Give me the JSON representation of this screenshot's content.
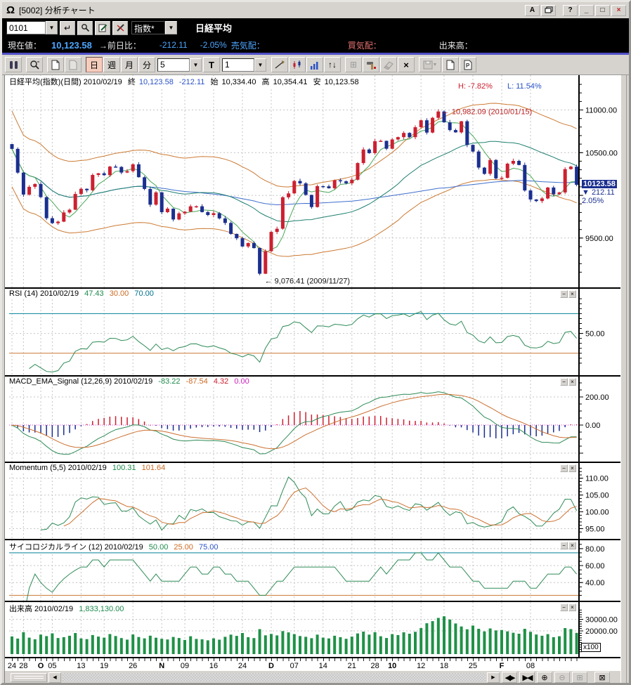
{
  "window": {
    "title": "[5002] 分析チャート",
    "logo": "Ω",
    "buttons": {
      "a": "A",
      "help": "?",
      "min": "_",
      "max": "□",
      "close": "×"
    }
  },
  "quote_bar": {
    "code": "0101",
    "index_type": "指数*",
    "instrument": "日経平均"
  },
  "status_bar": {
    "current_label": "現在値：",
    "current": "10,123.58",
    "prev_label": "→前日比：",
    "change": "-212.11",
    "change_pct": "-2.05%",
    "ask_label": "売気配：",
    "bid_label": "買気配：",
    "volume_label": "出来高："
  },
  "toolbar": {
    "day": "日",
    "week": "週",
    "month": "月",
    "minute": "分",
    "period": "5",
    "t": "T",
    "interval": "1",
    "updown": "↑↓",
    "grid": "⊞",
    "delete": "×"
  },
  "glyphs": {
    "dropdown": "▼",
    "enter": "↵",
    "left": "◀",
    "right": "▶",
    "expand": "◀▶",
    "shrink": "▶◀",
    "zoomin": "⊕",
    "zoomout": "⊖",
    "gridbox": "⊞",
    "boxclose": "⊠",
    "minimize": "−",
    "close": "×"
  },
  "panels": {
    "main": {
      "header_name": "日経平均(指数)(日間) 2010/02/19",
      "close_label": "終",
      "close": "10,123.58",
      "change": "-212.11",
      "open_label": "始",
      "open": "10,334.40",
      "high_label": "高",
      "high": "10,354.41",
      "low_label": "安",
      "low": "10,123.58",
      "h_label": "H: -7.82%",
      "l_label": "L: 11.54%",
      "anno_high": "← 10,982.09 (2010/01/15)",
      "anno_low": "← 9,076.41 (2009/11/27)",
      "price_chip": "10123.58",
      "diff_chip": "▼ 212.11",
      "pct_chip": "2.05%"
    },
    "rsi": {
      "title": "RSI (14) 2010/02/19",
      "v1": "47.43",
      "v2": "30.00",
      "v3": "70.00"
    },
    "macd": {
      "title": "MACD_EMA_Signal (12,26,9) 2010/02/19",
      "v1": "-83.22",
      "v2": "-87.54",
      "v3": "4.32",
      "v4": "0.00"
    },
    "momentum": {
      "title": "Momentum (5,5) 2010/02/19",
      "v1": "100.31",
      "v2": "101.64"
    },
    "psych": {
      "title": "サイコロジカルライン (12) 2010/02/19",
      "v1": "50.00",
      "v2": "25.00",
      "v3": "75.00"
    },
    "volume": {
      "title": "出来高 2010/02/19",
      "v1": "1,833,130.00",
      "multiplier": "x100"
    }
  },
  "chart_data": {
    "type": "candlestick-multi-panel",
    "title": "日経平均(指数)(日間)",
    "date": "2010/02/19",
    "closes": [
      10544,
      10266,
      10009,
      10100,
      10133,
      9979,
      9732,
      9674,
      9692,
      9800,
      9832,
      10016,
      10077,
      10060,
      10239,
      10258,
      10237,
      10337,
      10333,
      10267,
      10283,
      10363,
      10212,
      10075,
      9891,
      10035,
      9803,
      9844,
      9717,
      9789,
      9809,
      9871,
      9872,
      9804,
      9770,
      9791,
      9730,
      9677,
      9549,
      9498,
      9402,
      9442,
      9383,
      9082,
      9346,
      9572,
      9609,
      9978,
      10023,
      10168,
      10140,
      10005,
      9863,
      10108,
      10106,
      10083,
      10177,
      10164,
      10142,
      10183,
      10378,
      10537,
      10495,
      10634,
      10638,
      10546,
      10655,
      10682,
      10731,
      10682,
      10798,
      10879,
      10735,
      10908,
      10982,
      10855,
      10765,
      10738,
      10868,
      10591,
      10513,
      10325,
      10252,
      10414,
      10198,
      10205,
      10371,
      10404,
      10356,
      10057,
      9952,
      9933,
      9964,
      10092,
      10013,
      10034,
      10307,
      10336,
      10123.58
    ],
    "volumes": [
      15200,
      13400,
      18900,
      14200,
      12800,
      16800,
      15500,
      17900,
      13900,
      14600,
      15800,
      18200,
      13500,
      12900,
      16400,
      15100,
      14200,
      17300,
      15600,
      13800,
      12500,
      16900,
      14700,
      13600,
      15900,
      14100,
      13200,
      12600,
      14800,
      13900,
      12200,
      15400,
      13100,
      12700,
      11900,
      13600,
      12400,
      14900,
      16800,
      15700,
      18200,
      14600,
      13800,
      21500,
      16200,
      17400,
      16100,
      19800,
      18700,
      17200,
      15600,
      14900,
      13700,
      16800,
      14200,
      13500,
      15800,
      14600,
      13200,
      15100,
      17800,
      19400,
      16800,
      18900,
      15400,
      13900,
      17200,
      16400,
      18800,
      17600,
      19200,
      22400,
      26600,
      28400,
      31200,
      32600,
      29800,
      26400,
      23800,
      21400,
      24600,
      21800,
      19600,
      22100,
      20400,
      20800,
      19600,
      18400,
      17600,
      21800,
      19200,
      16900,
      15800,
      17200,
      14600,
      15400,
      22400,
      21600,
      18331
    ],
    "x_ticks": [
      {
        "t": "24",
        "i": 0
      },
      {
        "t": "28",
        "i": 2
      },
      {
        "t": "O",
        "i": 5,
        "b": 1
      },
      {
        "t": "05",
        "i": 7
      },
      {
        "t": "13",
        "i": 12
      },
      {
        "t": "19",
        "i": 16
      },
      {
        "t": "26",
        "i": 21
      },
      {
        "t": "N",
        "i": 26,
        "b": 1
      },
      {
        "t": "09",
        "i": 30
      },
      {
        "t": "16",
        "i": 35
      },
      {
        "t": "24",
        "i": 40
      },
      {
        "t": "D",
        "i": 45,
        "b": 1
      },
      {
        "t": "07",
        "i": 49
      },
      {
        "t": "14",
        "i": 54
      },
      {
        "t": "21",
        "i": 59
      },
      {
        "t": "28",
        "i": 63
      },
      {
        "t": "10",
        "i": 66,
        "b": 1
      },
      {
        "t": "12",
        "i": 71
      },
      {
        "t": "18",
        "i": 75
      },
      {
        "t": "25",
        "i": 80
      },
      {
        "t": "F",
        "i": 85,
        "b": 1
      },
      {
        "t": "08",
        "i": 90
      }
    ],
    "annotations": [
      {
        "price": 10982.09,
        "index": 74,
        "date": "2010/01/15"
      },
      {
        "price": 9076.41,
        "index": 43,
        "date": "2009/11/27"
      }
    ],
    "panel_scales": {
      "main": {
        "ylim": [
          8980,
          11350
        ],
        "yticks": [
          {
            "v": 11000,
            "t": "11000.00"
          },
          {
            "v": 10500,
            "t": "10500.00"
          },
          {
            "v": 10000,
            "t": ""
          },
          {
            "v": 9500,
            "t": "9500.00"
          }
        ]
      },
      "rsi": {
        "ylim": [
          15,
          88
        ],
        "yticks": [
          {
            "v": 50,
            "t": "50.00"
          }
        ],
        "level_hi": 70,
        "level_lo": 30
      },
      "macd": {
        "ylim": [
          -230,
          315
        ],
        "yticks": [
          {
            "v": 200,
            "t": "200.00"
          },
          {
            "v": 0,
            "t": "0.00"
          },
          {
            "v": -200,
            "t": ""
          }
        ]
      },
      "momentum": {
        "ylim": [
          93,
          113.5
        ],
        "yticks": [
          {
            "v": 110,
            "t": "110.00"
          },
          {
            "v": 105,
            "t": "105.00"
          },
          {
            "v": 100,
            "t": "100.00"
          },
          {
            "v": 95,
            "t": "95.00"
          }
        ]
      },
      "psych": {
        "ylim": [
          22,
          86.5
        ],
        "yticks": [
          {
            "v": 80,
            "t": "80.00"
          },
          {
            "v": 60,
            "t": "60.00"
          },
          {
            "v": 40,
            "t": "40.00"
          }
        ],
        "level_hi": 75,
        "level_lo": 25
      },
      "volume": {
        "ylim": [
          0,
          40000
        ],
        "yticks": [
          {
            "v": 30000,
            "t": "30000.00"
          },
          {
            "v": 20000,
            "t": "20000.00"
          }
        ]
      }
    },
    "colors": {
      "up": "#cc2030",
      "down": "#1b2f8f",
      "ma_fast": "#4aa758",
      "ma_mid": "#1e7f70",
      "ma_slow": "#3f6fcc",
      "env": "#cc7a33",
      "rsi": "#2e8b57",
      "level_hi": "#007f99",
      "level_lo": "#cc7733",
      "macd": "#2e8b57",
      "signal": "#cc7030",
      "hist_pos": "#cc2030",
      "hist_neg": "#1b2f8f",
      "zero": "#d633c4",
      "volume": "#1f9147",
      "grid": "#c4c4c4",
      "anno_high": "#bb2222",
      "anno_low": "#111111"
    }
  }
}
